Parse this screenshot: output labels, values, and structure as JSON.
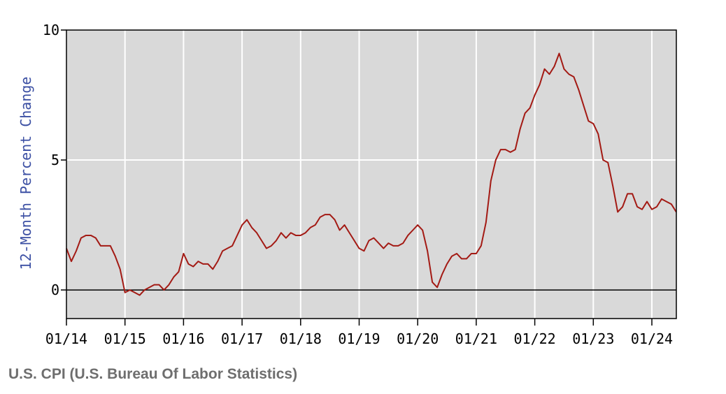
{
  "chart_data": {
    "type": "line",
    "ylabel": "12-Month Percent Change",
    "xlabel": "",
    "ylim": [
      -1.1,
      10
    ],
    "yticks": [
      0,
      5,
      10
    ],
    "xticks": [
      "01/14",
      "01/15",
      "01/16",
      "01/17",
      "01/18",
      "01/19",
      "01/20",
      "01/21",
      "01/22",
      "01/23",
      "01/24"
    ],
    "grid": true,
    "series": [
      {
        "color": "#a31a14",
        "start": "2014-01",
        "end": "2024-06",
        "values": [
          1.6,
          1.1,
          1.5,
          2.0,
          2.1,
          2.1,
          2.0,
          1.7,
          1.7,
          1.7,
          1.3,
          0.8,
          -0.1,
          0.0,
          -0.1,
          -0.2,
          0.0,
          0.1,
          0.2,
          0.2,
          0.0,
          0.2,
          0.5,
          0.7,
          1.4,
          1.0,
          0.9,
          1.1,
          1.0,
          1.0,
          0.8,
          1.1,
          1.5,
          1.6,
          1.7,
          2.1,
          2.5,
          2.7,
          2.4,
          2.2,
          1.9,
          1.6,
          1.7,
          1.9,
          2.2,
          2.0,
          2.2,
          2.1,
          2.1,
          2.2,
          2.4,
          2.5,
          2.8,
          2.9,
          2.9,
          2.7,
          2.3,
          2.5,
          2.2,
          1.9,
          1.6,
          1.5,
          1.9,
          2.0,
          1.8,
          1.6,
          1.8,
          1.7,
          1.7,
          1.8,
          2.1,
          2.3,
          2.5,
          2.3,
          1.5,
          0.3,
          0.1,
          0.6,
          1.0,
          1.3,
          1.4,
          1.2,
          1.2,
          1.4,
          1.4,
          1.7,
          2.6,
          4.2,
          5.0,
          5.4,
          5.4,
          5.3,
          5.4,
          6.2,
          6.8,
          7.0,
          7.5,
          7.9,
          8.5,
          8.3,
          8.6,
          9.1,
          8.5,
          8.3,
          8.2,
          7.7,
          7.1,
          6.5,
          6.4,
          6.0,
          5.0,
          4.9,
          4.0,
          3.0,
          3.2,
          3.7,
          3.7,
          3.2,
          3.1,
          3.4,
          3.1,
          3.2,
          3.5,
          3.4,
          3.3,
          3.0
        ]
      }
    ]
  },
  "footer": {
    "source": "U.S. CPI (U.S. Bureau Of Labor Statistics)"
  }
}
